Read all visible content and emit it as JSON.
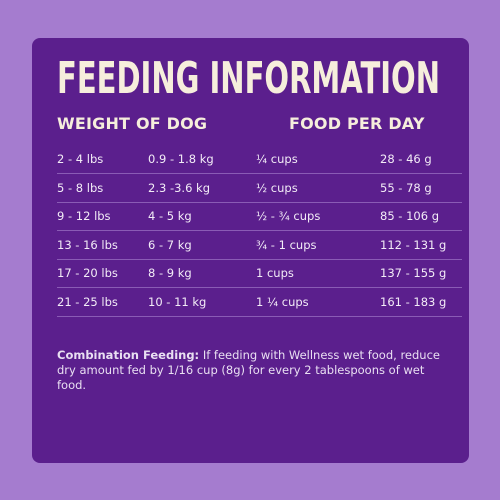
{
  "header": {
    "title": "FEEDING INFORMATION"
  },
  "table": {
    "headers": [
      "WEIGHT OF DOG",
      "FOOD PER DAY"
    ],
    "rows": [
      [
        "2 - 4 lbs",
        "0.9 - 1.8 kg",
        "¼ cups",
        "28 - 46 g"
      ],
      [
        "5 - 8 lbs",
        "2.3 -3.6 kg",
        "½ cups",
        "55 - 78 g"
      ],
      [
        "9 - 12 lbs",
        "4 - 5 kg",
        "½ - ¾ cups",
        "85 - 106 g"
      ],
      [
        "13 - 16 lbs",
        "6 - 7 kg",
        "¾ - 1 cups",
        "112 - 131 g"
      ],
      [
        "17 - 20 lbs",
        "8 - 9 kg",
        "1 cups",
        "137 - 155 g"
      ],
      [
        "21 - 25 lbs",
        "10 - 11 kg",
        "1 ¼ cups",
        "161 - 183 g"
      ]
    ]
  },
  "note": {
    "label": "Combination Feeding:",
    "text": "If feeding with Wellness wet food, reduce dry amount fed by 1/16 cup (8g) for every 2 tablespoons of wet food."
  }
}
